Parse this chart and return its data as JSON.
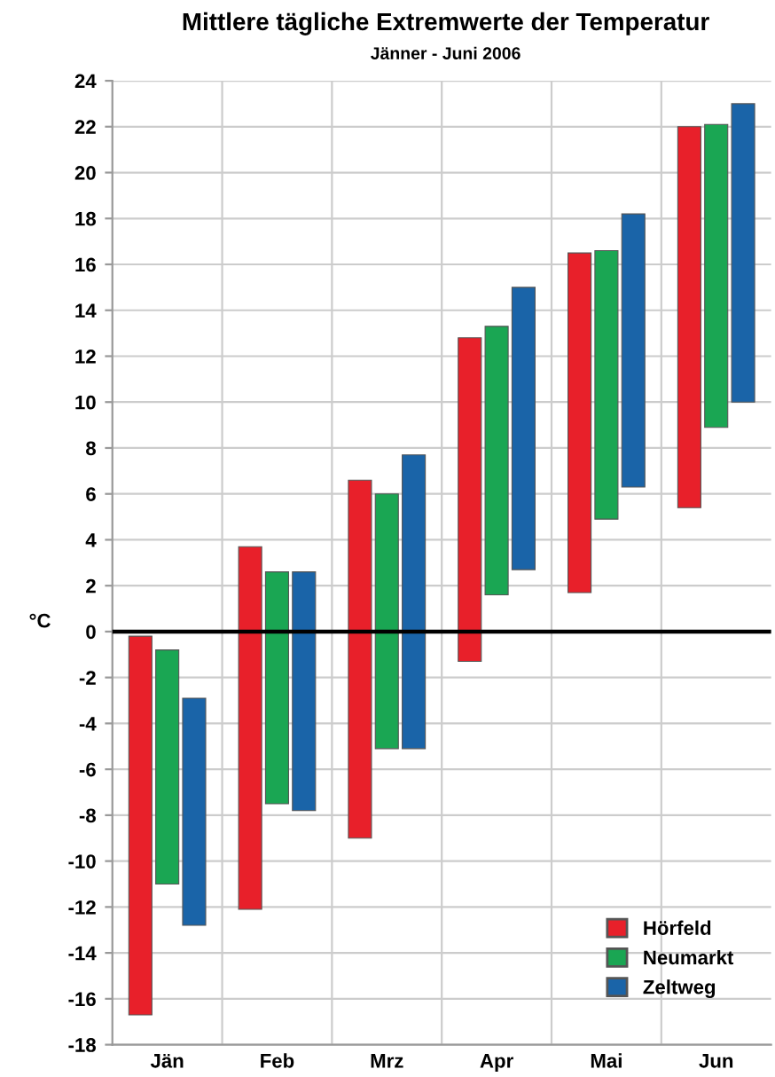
{
  "chart_data": {
    "type": "bar",
    "title": "Mittlere tägliche Extremwerte der Temperatur",
    "subtitle": "Jänner - Juni 2006",
    "ylabel": "°C",
    "categories": [
      "Jän",
      "Feb",
      "Mrz",
      "Apr",
      "Mai",
      "Jun"
    ],
    "series": [
      {
        "name": "Hörfeld",
        "color": "#e8202a",
        "values": [
          16.5,
          15.8,
          15.6,
          14.1,
          14.8,
          16.6
        ],
        "base": [
          -16.7,
          -12.1,
          -9.0,
          -1.3,
          1.7,
          5.4
        ]
      },
      {
        "name": "Neumarkt",
        "color": "#1aa653",
        "values": [
          10.2,
          10.1,
          11.1,
          11.7,
          11.7,
          13.2
        ],
        "base": [
          -11.0,
          -7.5,
          -5.1,
          1.6,
          4.9,
          8.9
        ]
      },
      {
        "name": "Zeltweg",
        "color": "#1a64a8",
        "values": [
          9.9,
          10.4,
          12.8,
          12.3,
          11.9,
          13.0
        ],
        "base": [
          -12.8,
          -7.8,
          -5.1,
          2.7,
          6.3,
          10.0
        ]
      }
    ],
    "ylim": [
      -18,
      24
    ],
    "yticks": [
      -18,
      -16,
      -14,
      -12,
      -10,
      -8,
      -6,
      -4,
      -2,
      0,
      2,
      4,
      6,
      8,
      10,
      12,
      14,
      16,
      18,
      20,
      22,
      24
    ],
    "ref_lines": [
      {
        "axis": "y",
        "value": 0,
        "color": "#000000"
      }
    ],
    "grid": true,
    "legend": "bottom right"
  }
}
